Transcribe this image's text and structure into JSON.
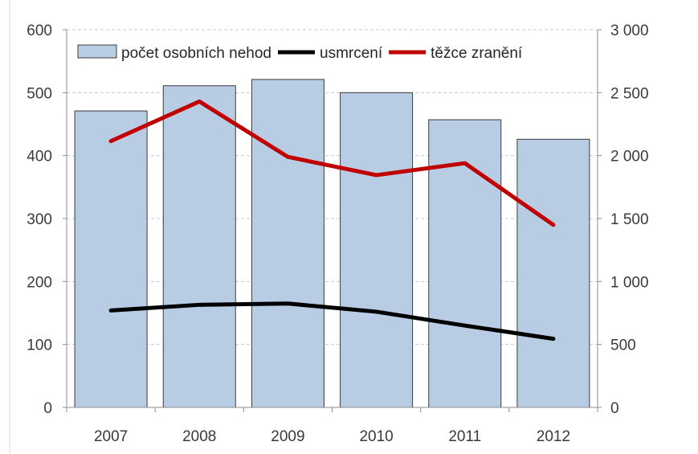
{
  "chart_data": {
    "type": "bar",
    "categories": [
      "2007",
      "2008",
      "2009",
      "2010",
      "2011",
      "2012"
    ],
    "series": [
      {
        "name": "počet osobních nehod",
        "type": "bar",
        "axis": "left",
        "color": "#b8cce4",
        "values": [
          471,
          511,
          521,
          500,
          457,
          426
        ]
      },
      {
        "name": "usmrcení",
        "type": "line",
        "axis": "left",
        "color": "#000000",
        "values": [
          154,
          163,
          165,
          152,
          130,
          109
        ]
      },
      {
        "name": "těžce zranění",
        "type": "line",
        "axis": "right",
        "color": "#c00000",
        "values": [
          2115,
          2430,
          1990,
          1845,
          1940,
          1450
        ]
      }
    ],
    "y_left": {
      "lim": [
        0,
        600
      ],
      "ticks": [
        "0",
        "100",
        "200",
        "300",
        "400",
        "500",
        "600"
      ]
    },
    "y_right": {
      "lim": [
        0,
        3000
      ],
      "ticks": [
        "0",
        "500",
        "1 000",
        "1 500",
        "2 000",
        "2 500",
        "3 000"
      ]
    },
    "grid": true,
    "legend": "top",
    "title": "",
    "xlabel": "",
    "ylabel": ""
  }
}
